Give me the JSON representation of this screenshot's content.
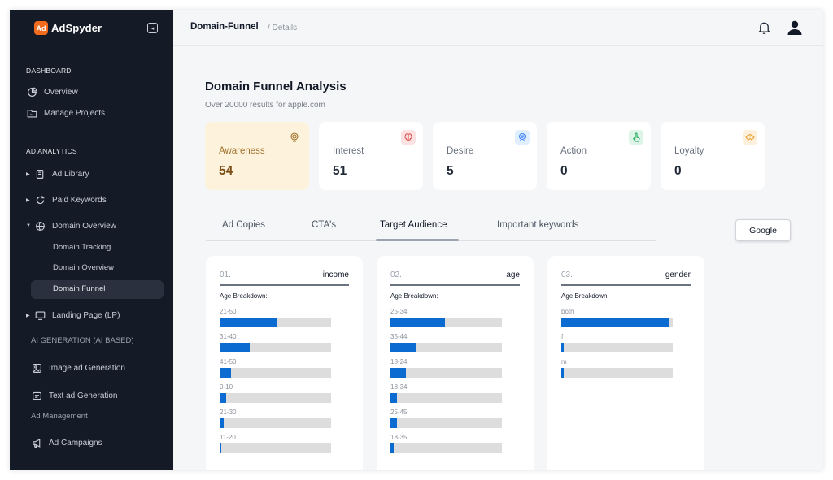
{
  "brand": {
    "name": "AdSpyder",
    "logo_text": "Ad"
  },
  "sidebar": {
    "dashboard_title": "DASHBOARD",
    "overview": "Overview",
    "manage_projects": "Manage Projects",
    "ad_analytics_title": "AD ANALYTICS",
    "ad_library": "Ad Library",
    "paid_keywords": "Paid Keywords",
    "domain_overview": "Domain Overview",
    "sub_items": [
      "Domain Tracking",
      "Domain Overview",
      "Domain Funnel"
    ],
    "landing_page": "Landing Page (LP)",
    "ai_generation_title": "AI GENERATION (AI BASED)",
    "image_ad_generation": "Image ad Generation",
    "text_ad_generation": "Text ad Generation",
    "ad_management_title": "Ad Management",
    "ad_campaigns": "Ad Campaigns"
  },
  "header": {
    "breadcrumb_main": "Domain-Funnel",
    "breadcrumb_sub": "/ Details"
  },
  "main": {
    "title": "Domain Funnel Analysis",
    "subtitle": "Over 20000 results for apple.com",
    "stats": [
      {
        "label": "Awareness",
        "value": "54",
        "icon": "radar-icon",
        "icon_bg": "#fdf3dc",
        "icon_color": "#a0702a"
      },
      {
        "label": "Interest",
        "value": "51",
        "icon": "brain-icon",
        "icon_bg": "#fde2e2",
        "icon_color": "#e05555"
      },
      {
        "label": "Desire",
        "value": "5",
        "icon": "heart-brain-icon",
        "icon_bg": "#e0efff",
        "icon_color": "#3b82f6"
      },
      {
        "label": "Action",
        "value": "0",
        "icon": "hand-pointer-icon",
        "icon_bg": "#dcf5e8",
        "icon_color": "#16a34a"
      },
      {
        "label": "Loyalty",
        "value": "0",
        "icon": "handshake-icon",
        "icon_bg": "#fdf0dc",
        "icon_color": "#f0a030"
      }
    ],
    "tabs": [
      "Ad Copies",
      "CTA's",
      "Target Audience",
      "Important keywords"
    ],
    "active_tab": "Target Audience",
    "google_button": "Google",
    "cards": [
      {
        "number": "01.",
        "name": "income",
        "breakdown_label": "Age Breakdown:",
        "bars": [
          {
            "label": "21-50",
            "value": 0.52
          },
          {
            "label": "31-40",
            "value": 0.27
          },
          {
            "label": "41-50",
            "value": 0.1
          },
          {
            "label": "0-10",
            "value": 0.06
          },
          {
            "label": "21-30",
            "value": 0.04
          },
          {
            "label": "11-20",
            "value": 0.015
          }
        ]
      },
      {
        "number": "02.",
        "name": "age",
        "breakdown_label": "Age Breakdown:",
        "bars": [
          {
            "label": "25-34",
            "value": 0.49
          },
          {
            "label": "35-44",
            "value": 0.23
          },
          {
            "label": "18-24",
            "value": 0.14
          },
          {
            "label": "18-34",
            "value": 0.06
          },
          {
            "label": "25-45",
            "value": 0.06
          },
          {
            "label": "18-35",
            "value": 0.03
          }
        ]
      },
      {
        "number": "03.",
        "name": "gender",
        "breakdown_label": "Age Breakdown:",
        "bars": [
          {
            "label": "both",
            "value": 0.96
          },
          {
            "label": "f",
            "value": 0.02
          },
          {
            "label": "m",
            "value": 0.02
          }
        ]
      }
    ]
  },
  "colors": {
    "sidebar_bg": "#141a26",
    "accent_bar": "#0b6bd1",
    "brand_orange": "#f26b1d"
  }
}
